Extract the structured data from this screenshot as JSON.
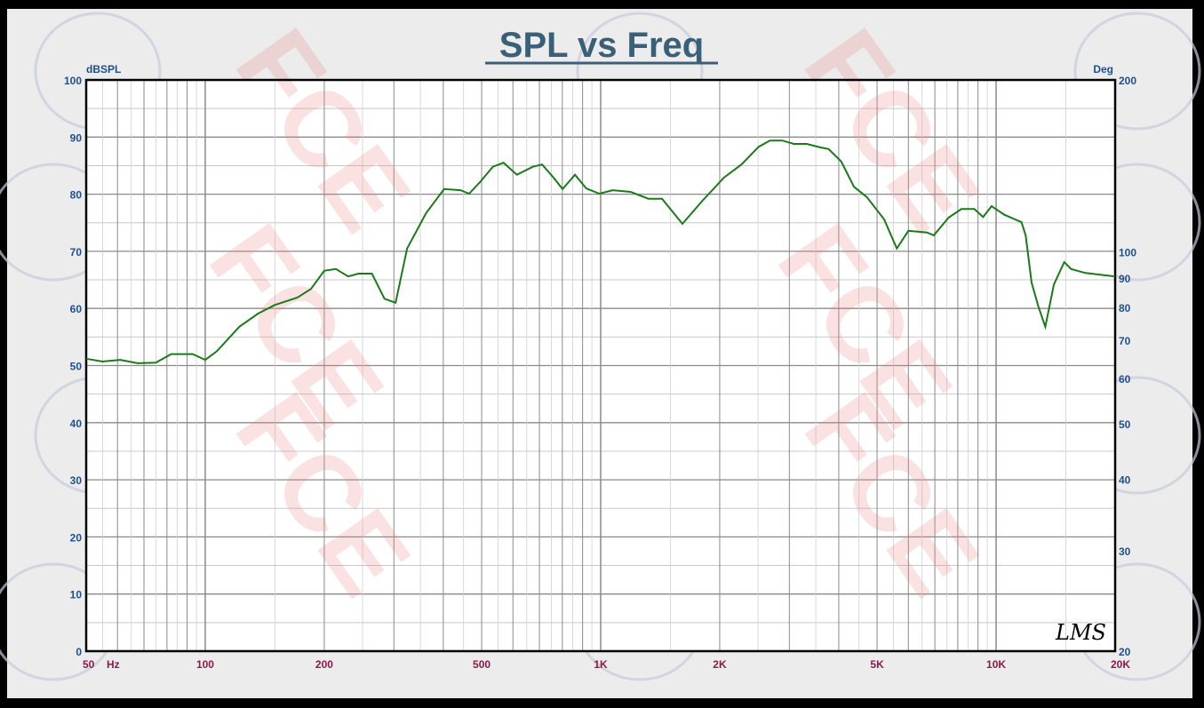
{
  "chart_data": {
    "type": "line",
    "title": "SPL vs Freq",
    "ylabel": "dBSPL",
    "y2label": "Deg",
    "xlabel": "Hz",
    "xscale": "log",
    "xlim": [
      50,
      20000
    ],
    "ylim": [
      0,
      100
    ],
    "y2lim": [
      20,
      200
    ],
    "y2scale": "log",
    "grid": true,
    "xticks": [
      {
        "v": 50,
        "label": "50"
      },
      {
        "v": 100,
        "label": "100"
      },
      {
        "v": 200,
        "label": "200"
      },
      {
        "v": 500,
        "label": "500"
      },
      {
        "v": 1000,
        "label": "1K"
      },
      {
        "v": 2000,
        "label": "2K"
      },
      {
        "v": 5000,
        "label": "5K"
      },
      {
        "v": 10000,
        "label": "10K"
      },
      {
        "v": 20000,
        "label": "20K"
      }
    ],
    "yticks": [
      0,
      10,
      20,
      30,
      40,
      50,
      60,
      70,
      80,
      90,
      100
    ],
    "y2ticks": [
      20,
      30,
      40,
      50,
      60,
      70,
      80,
      90,
      100,
      200
    ],
    "series": [
      {
        "name": "SPL",
        "color": "#1a7a1a",
        "x": [
          50,
          55,
          61,
          67.5,
          75,
          82,
          93,
          100,
          107,
          122,
          136,
          150,
          171,
          185,
          200,
          214,
          230,
          244,
          264,
          284,
          303,
          324,
          362,
          402,
          442,
          465,
          495,
          534,
          568,
          614,
          674,
          711,
          760,
          801,
          861,
          920,
          993,
          1073,
          1190,
          1320,
          1430,
          1610,
          1800,
          2050,
          2270,
          2510,
          2680,
          2880,
          3080,
          3320,
          3590,
          3770,
          4060,
          4370,
          4710,
          5210,
          5610,
          6000,
          6690,
          6960,
          7580,
          8170,
          8810,
          9270,
          9740,
          10490,
          11590,
          11880,
          12300,
          12800,
          13320,
          14000,
          14870,
          15470,
          16820,
          20000
        ],
        "y": [
          51.2,
          50.7,
          51,
          50.4,
          50.5,
          52,
          52,
          51,
          52.5,
          56.8,
          59.1,
          60.6,
          61.9,
          63.4,
          66.6,
          66.9,
          65.6,
          66.1,
          66.1,
          61.7,
          61,
          70.5,
          76.7,
          80.9,
          80.7,
          80.1,
          82.1,
          84.8,
          85.5,
          83.4,
          84.8,
          85.2,
          82.9,
          80.9,
          83.4,
          81,
          80.1,
          80.7,
          80.4,
          79.2,
          79.2,
          74.8,
          78.7,
          82.9,
          85.2,
          88.3,
          89.4,
          89.4,
          88.8,
          88.8,
          88.2,
          87.9,
          85.7,
          81.3,
          79.5,
          75.6,
          70.5,
          73.6,
          73.3,
          72.8,
          75.9,
          77.4,
          77.4,
          76,
          77.9,
          76.4,
          75.1,
          72.8,
          64.5,
          60.3,
          56.8,
          64.2,
          68.1,
          66.9,
          66.2,
          65.6
        ]
      }
    ],
    "colors": {
      "axis_text": "#1f4f8f",
      "x_tick_text": "#8a1a4a",
      "title": "#3a5f78",
      "watermark": "#f08080"
    },
    "watermark_text": "FCE",
    "signature": "LMS"
  }
}
